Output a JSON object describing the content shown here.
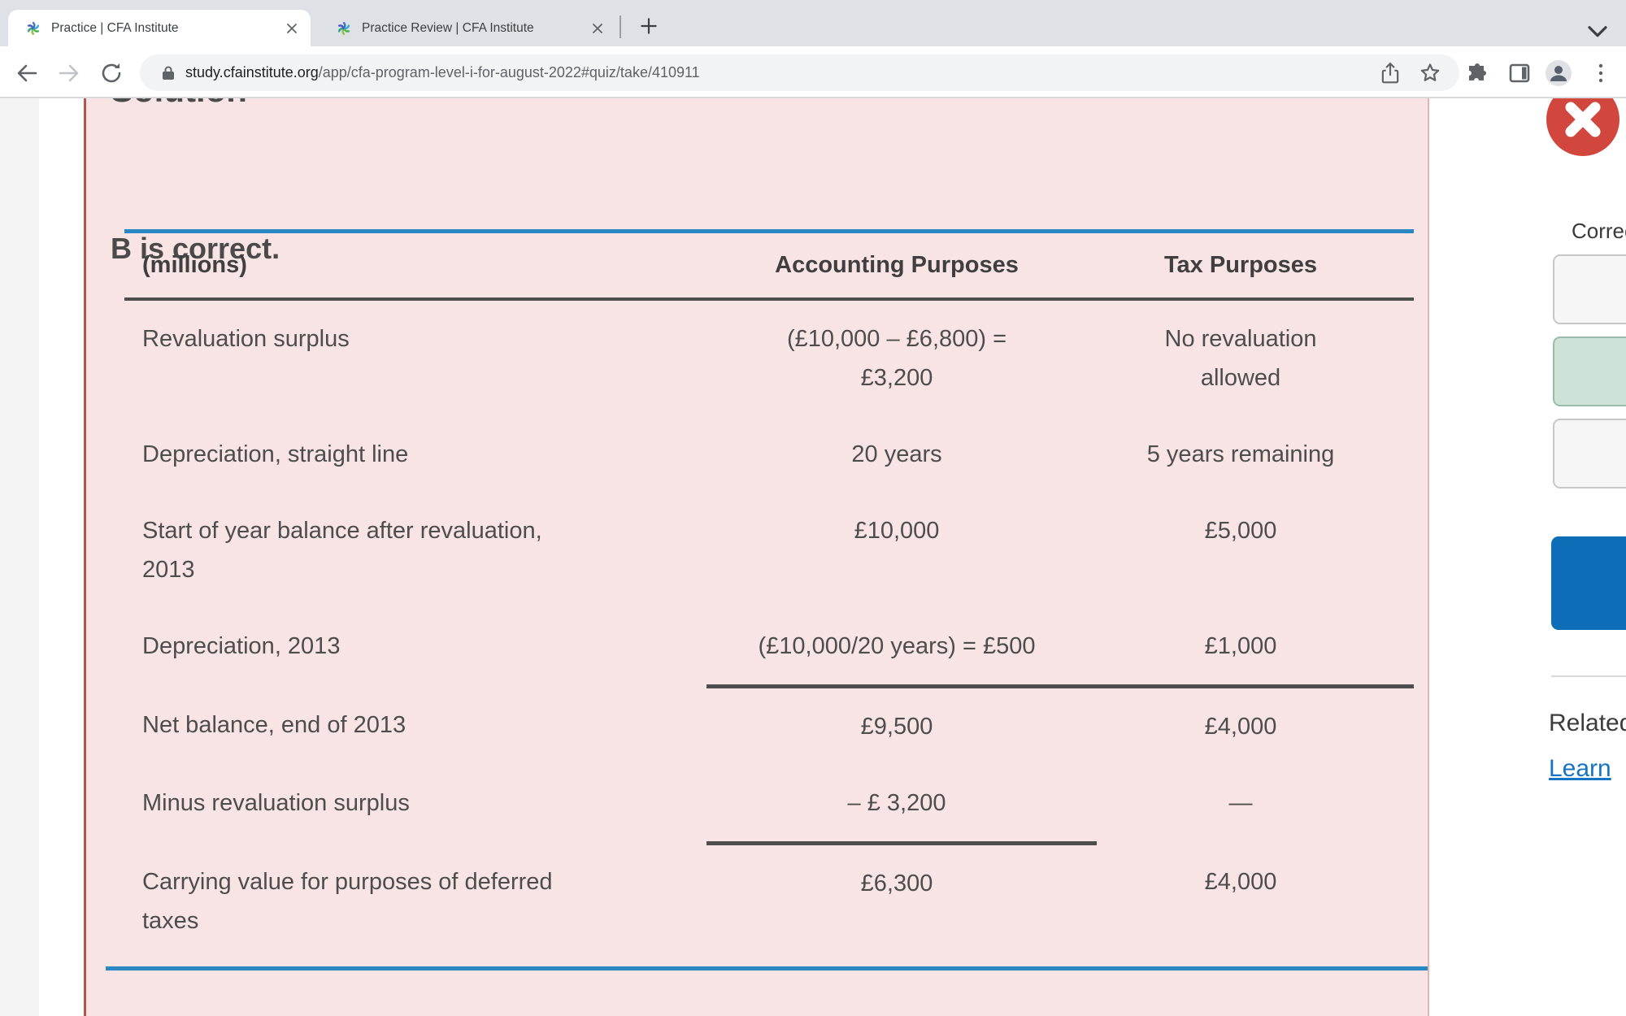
{
  "browser": {
    "tabs": [
      {
        "title": "Practice | CFA Institute",
        "active": true
      },
      {
        "title": "Practice Review | CFA Institute",
        "active": false
      }
    ],
    "url": {
      "domain": "study.cfainstitute.org",
      "path": "/app/cfa-program-level-i-for-august-2022#quiz/take/410911"
    },
    "icons": [
      "cfa-favicon",
      "tab-close-icon",
      "new-tab-icon",
      "chevron-down-icon",
      "back-icon",
      "forward-icon",
      "reload-icon",
      "lock-icon",
      "share-icon",
      "bookmark-star-icon",
      "extensions-icon",
      "side-panel-icon",
      "profile-icon",
      "menu-icon",
      "close-circle-icon"
    ]
  },
  "solution": {
    "heading": "Solution",
    "verdict": "B is correct.",
    "table": {
      "headers": [
        "(millions)",
        "Accounting Purposes",
        "Tax Purposes"
      ],
      "rows": [
        {
          "cells": [
            "Revaluation surplus",
            "(£10,000 – £6,800) =\n£3,200",
            "No revaluation\nallowed"
          ],
          "rule": "none"
        },
        {
          "cells": [
            "Depreciation, straight line",
            "20 years",
            "5 years remaining"
          ],
          "rule": "none"
        },
        {
          "cells": [
            "Start of year balance after revaluation,\n2013",
            "£10,000",
            "£5,000"
          ],
          "rule": "none"
        },
        {
          "cells": [
            "Depreciation, 2013",
            "(£10,000/20 years) = £500",
            "£1,000"
          ],
          "rule": "none"
        },
        {
          "cells": [
            "Net balance, end of 2013",
            "£9,500",
            "£4,000"
          ],
          "rule": "both"
        },
        {
          "cells": [
            "Minus revaluation surplus",
            "– £ 3,200",
            "—"
          ],
          "rule": "none"
        },
        {
          "cells": [
            "Carrying value for purposes of deferred\ntaxes",
            "£6,300",
            "£4,000"
          ],
          "rule": "acct"
        }
      ]
    }
  },
  "sidebar": {
    "correct_label": "Correct",
    "options": [
      {
        "state": "neutral"
      },
      {
        "state": "correct"
      },
      {
        "state": "neutral"
      }
    ],
    "related_label": "Related",
    "learn_link": "Learn"
  },
  "colors": {
    "accent_blue": "#2a87c3",
    "panel_pink": "#f8e4e4",
    "panel_border_red": "#b5554e",
    "rule_dark": "#4d4d4d",
    "close_red": "#d2473d",
    "correct_green_bg": "#cfe2d8",
    "correct_green_border": "#97bcaa",
    "neutral_box_bg": "#f6f6f6",
    "neutral_box_border": "#c7c7c7",
    "primary_button_blue": "#0d6db6",
    "link_blue": "#1574c4"
  }
}
